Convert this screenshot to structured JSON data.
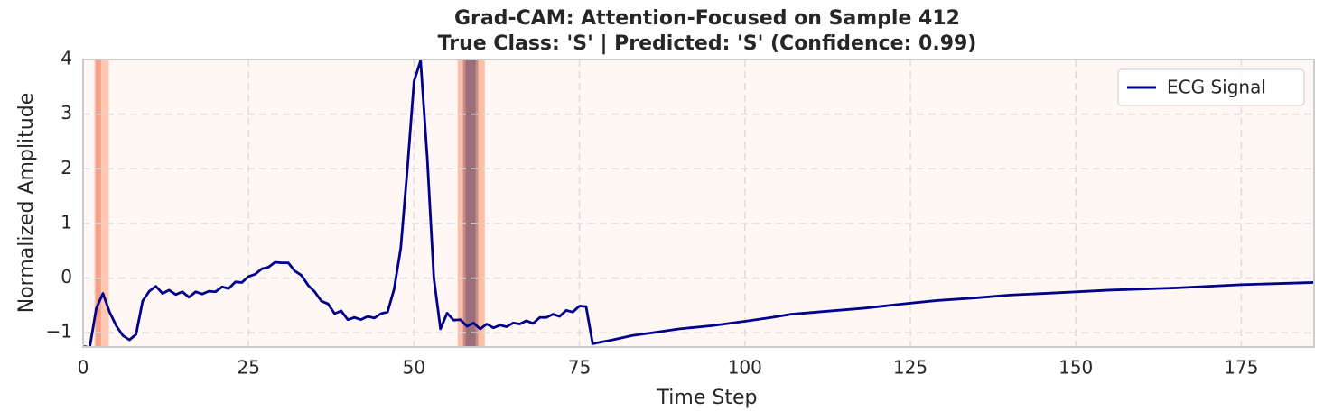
{
  "chart_data": {
    "type": "line",
    "title": "Grad-CAM: Attention-Focused on Sample 412",
    "subtitle": "True Class: 'S' | Predicted: 'S' (Confidence: 0.99)",
    "x_label": "Time Step",
    "y_label": "Normalized Amplitude",
    "xlim": [
      0,
      186
    ],
    "ylim": [
      -1.26,
      4
    ],
    "xticks": [
      0,
      25,
      50,
      75,
      100,
      125,
      150,
      175
    ],
    "yticks": [
      {
        "value": -1,
        "label": "−1"
      },
      0,
      1,
      2,
      3,
      4
    ],
    "grid": true,
    "legend": "upper right",
    "background": "#fff7f4",
    "highlights": [
      {
        "start": 1.7,
        "end": 3.9,
        "color": "#fdc9b4"
      },
      {
        "start": 1.9,
        "end": 2.7,
        "color": "#f4a08a"
      },
      {
        "start": 56.6,
        "end": 60.7,
        "color": "#fcbfa8"
      },
      {
        "start": 57.4,
        "end": 59.7,
        "color": "#c98a86"
      },
      {
        "start": 57.8,
        "end": 59.3,
        "color": "#9a6f7a"
      }
    ],
    "series": [
      {
        "name": "ECG Signal",
        "color": "#00008b",
        "x": [
          0,
          1,
          2,
          3,
          4,
          5,
          6,
          7,
          8,
          9,
          10,
          11,
          12,
          13,
          14,
          15,
          16,
          17,
          18,
          19,
          20,
          21,
          22,
          23,
          24,
          25,
          26,
          27,
          28,
          29,
          30,
          31,
          32,
          33,
          34,
          35,
          36,
          37,
          38,
          39,
          40,
          41,
          42,
          43,
          44,
          45,
          46,
          47,
          48,
          49,
          50,
          51,
          52,
          53,
          54,
          55,
          56,
          57,
          58,
          59,
          60,
          61,
          62,
          63,
          64,
          65,
          66,
          67,
          68,
          69,
          70,
          71,
          72,
          73,
          74,
          75,
          76,
          77,
          80,
          83,
          86,
          90,
          95,
          100,
          104,
          107,
          112,
          118,
          124,
          129,
          135,
          140,
          147,
          155,
          165,
          175,
          186
        ],
        "values": [
          -1.25,
          -1.27,
          -0.55,
          -0.28,
          -0.62,
          -0.87,
          -1.05,
          -1.13,
          -1.03,
          -0.42,
          -0.24,
          -0.15,
          -0.28,
          -0.22,
          -0.3,
          -0.25,
          -0.35,
          -0.25,
          -0.29,
          -0.24,
          -0.25,
          -0.16,
          -0.19,
          -0.07,
          -0.08,
          0.03,
          0.07,
          0.17,
          0.2,
          0.29,
          0.28,
          0.28,
          0.13,
          0.05,
          -0.13,
          -0.25,
          -0.42,
          -0.47,
          -0.65,
          -0.6,
          -0.76,
          -0.72,
          -0.76,
          -0.7,
          -0.73,
          -0.65,
          -0.62,
          -0.2,
          0.55,
          2.0,
          3.6,
          3.98,
          2.2,
          0.0,
          -0.93,
          -0.64,
          -0.77,
          -0.76,
          -0.88,
          -0.82,
          -0.93,
          -0.84,
          -0.91,
          -0.86,
          -0.89,
          -0.82,
          -0.84,
          -0.78,
          -0.83,
          -0.72,
          -0.72,
          -0.66,
          -0.7,
          -0.59,
          -0.62,
          -0.51,
          -0.52,
          -1.2,
          -1.13,
          -1.05,
          -1.0,
          -0.93,
          -0.87,
          -0.79,
          -0.72,
          -0.66,
          -0.61,
          -0.55,
          -0.47,
          -0.41,
          -0.36,
          -0.31,
          -0.27,
          -0.22,
          -0.18,
          -0.12,
          -0.08
        ]
      }
    ]
  }
}
